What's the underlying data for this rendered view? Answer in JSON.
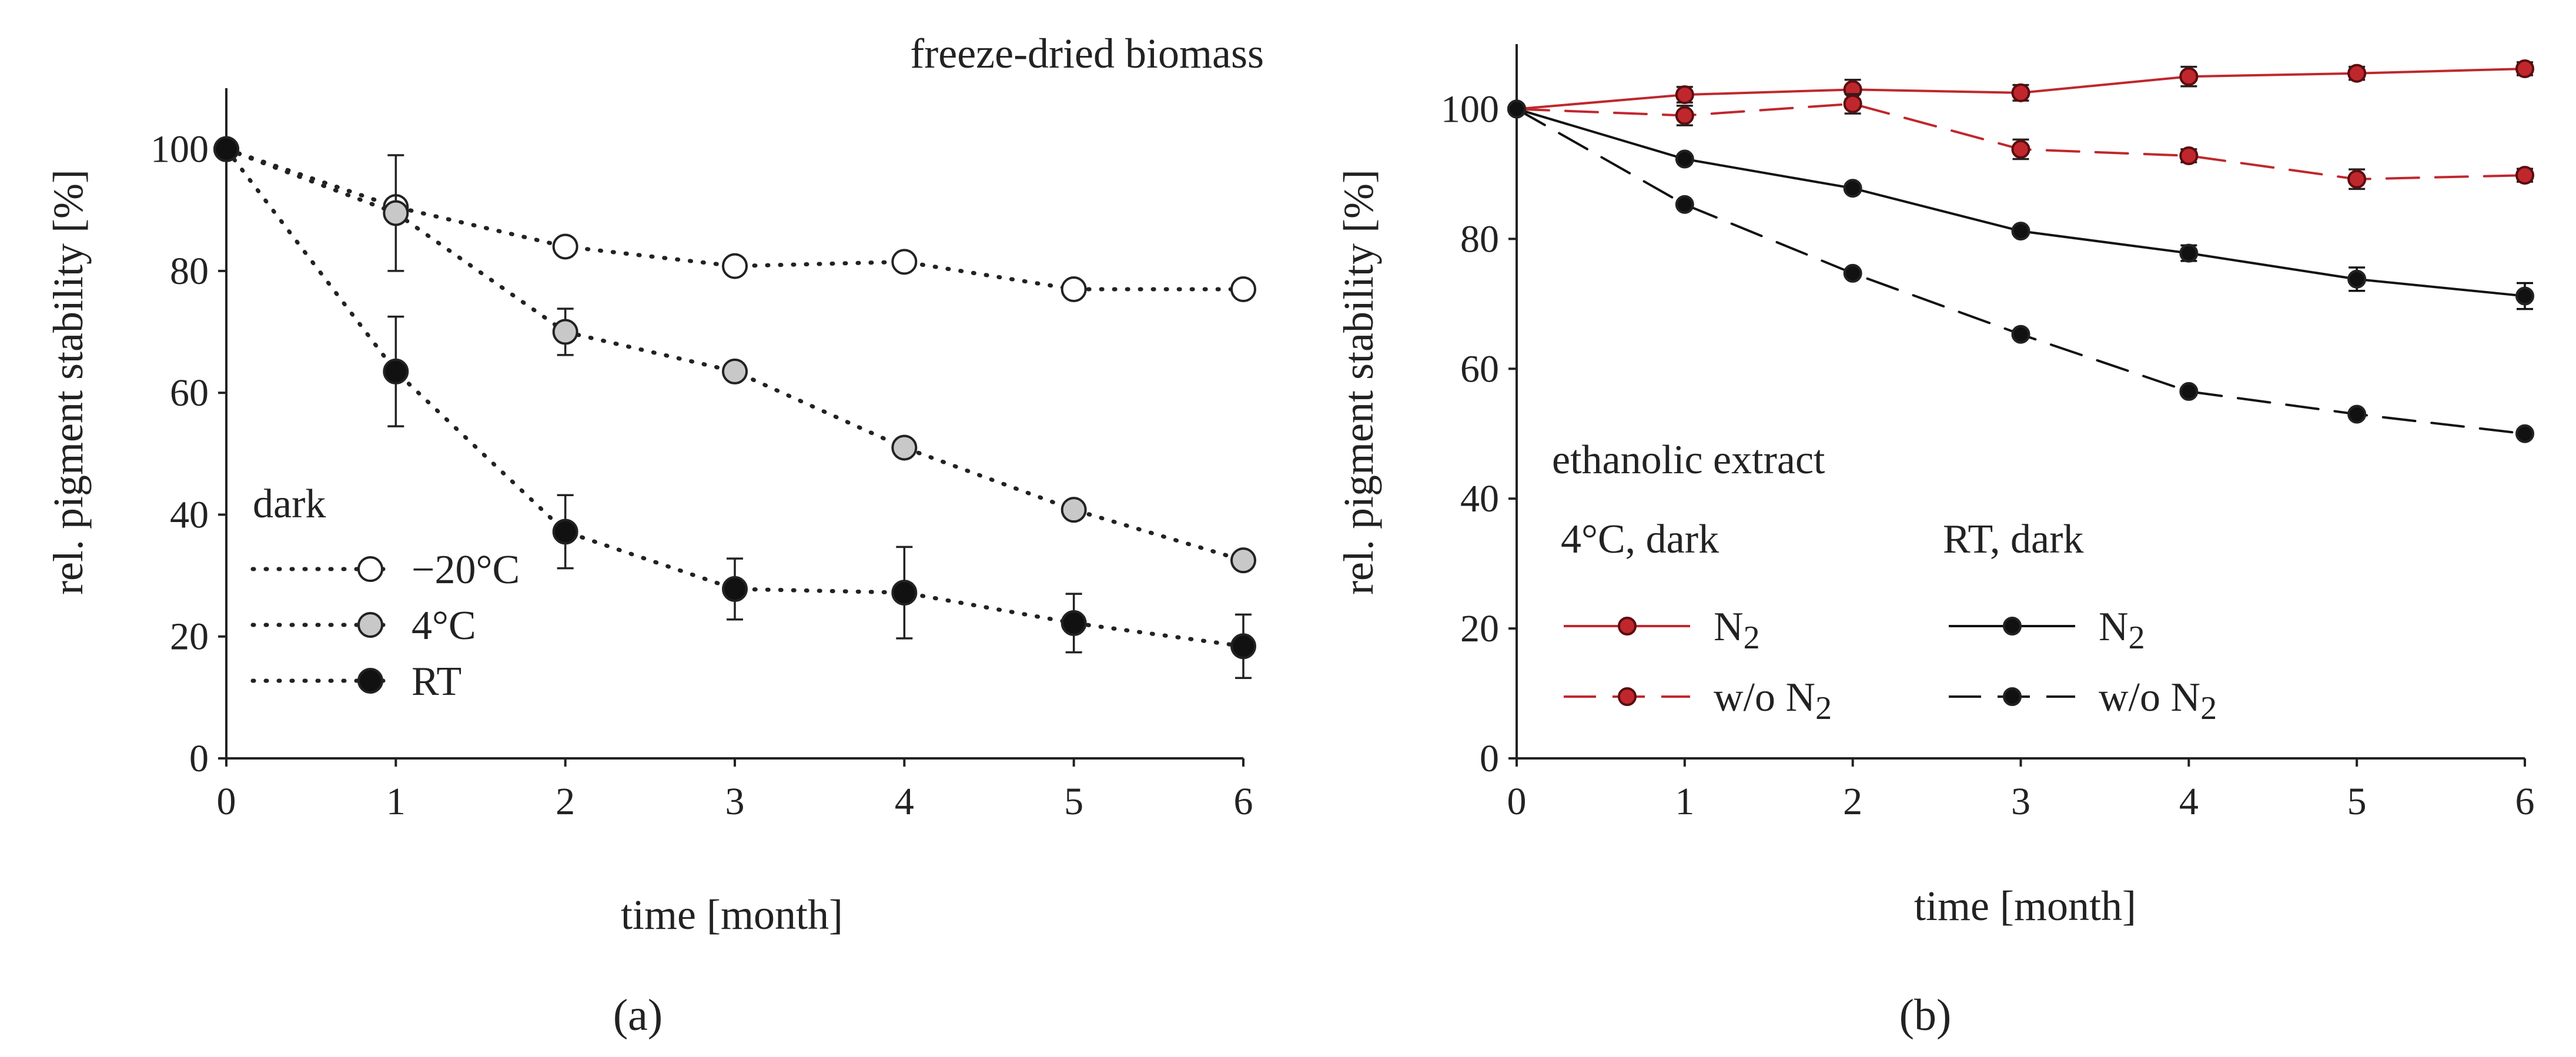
{
  "chart_data": [
    {
      "panel": "a",
      "panel_label": "(a)",
      "type": "line",
      "title": "freeze-dried biomass",
      "xlabel": "time [month]",
      "ylabel": "rel. pigment stability [%]",
      "xlim": [
        0,
        6
      ],
      "ylim": [
        0,
        110
      ],
      "xticks": [
        0,
        1,
        2,
        3,
        4,
        5,
        6
      ],
      "yticks": [
        0,
        20,
        40,
        60,
        80,
        100
      ],
      "legend_title": "dark",
      "legend_position": "bottom-left",
      "series": [
        {
          "name": "−20°C",
          "x": [
            0,
            1,
            2,
            3,
            4,
            5,
            6
          ],
          "values": [
            100,
            90.5,
            84,
            80.8,
            81.5,
            77,
            77
          ],
          "err": [
            0,
            0,
            0,
            0,
            0,
            0,
            0
          ],
          "marker": "open",
          "color": "#ffffff",
          "line": "dotted"
        },
        {
          "name": "4°C",
          "x": [
            0,
            1,
            2,
            3,
            4,
            5,
            6
          ],
          "values": [
            100,
            89.5,
            70,
            63.5,
            51,
            40.8,
            32.5
          ],
          "err": [
            0,
            9.5,
            3.8,
            0,
            0,
            0,
            0
          ],
          "marker": "gray",
          "color": "#c8c8c8",
          "line": "dotted"
        },
        {
          "name": "RT",
          "x": [
            0,
            1,
            2,
            3,
            4,
            5,
            6
          ],
          "values": [
            100,
            63.5,
            37.2,
            27.8,
            27.2,
            22.2,
            18.4
          ],
          "err": [
            0,
            9,
            6,
            5,
            7.5,
            4.8,
            5.2
          ],
          "marker": "black",
          "color": "#111111",
          "line": "dotted"
        }
      ]
    },
    {
      "panel": "b",
      "panel_label": "(b)",
      "type": "line",
      "title": "ethanolic extract",
      "xlabel": "time [month]",
      "ylabel": "rel. pigment stability [%]",
      "xlim": [
        0,
        6
      ],
      "ylim": [
        0,
        110
      ],
      "xticks": [
        0,
        1,
        2,
        3,
        4,
        5,
        6
      ],
      "yticks": [
        0,
        20,
        40,
        60,
        80,
        100
      ],
      "legend_groups": [
        "4°C, dark",
        "RT, dark"
      ],
      "legend_position": "bottom-left",
      "series": [
        {
          "name": "N2",
          "group": "4°C, dark",
          "x": [
            0,
            1,
            2,
            3,
            4,
            5,
            6
          ],
          "values": [
            100,
            102.2,
            103,
            102.5,
            105,
            105.5,
            106.2
          ],
          "err": [
            0,
            1.2,
            1.5,
            1.2,
            1.5,
            1,
            1
          ],
          "color": "#c0272d",
          "line": "solid"
        },
        {
          "name": "w/o N2",
          "group": "4°C, dark",
          "x": [
            0,
            1,
            2,
            3,
            4,
            5,
            6
          ],
          "values": [
            100,
            99,
            100.8,
            93.8,
            92.8,
            89.2,
            89.8
          ],
          "err": [
            0,
            1.5,
            1.5,
            1.5,
            1,
            1.5,
            1
          ],
          "color": "#c0272d",
          "line": "dashed"
        },
        {
          "name": "N2",
          "group": "RT, dark",
          "x": [
            0,
            1,
            2,
            3,
            4,
            5,
            6
          ],
          "values": [
            100,
            92.3,
            87.8,
            81.2,
            77.8,
            73.8,
            71.2
          ],
          "err": [
            0,
            0,
            0,
            0,
            1.2,
            1.8,
            2
          ],
          "color": "#111111",
          "line": "solid"
        },
        {
          "name": "w/o N2",
          "group": "RT, dark",
          "x": [
            0,
            1,
            2,
            3,
            4,
            5,
            6
          ],
          "values": [
            100,
            85.3,
            74.7,
            65.3,
            56.5,
            53,
            50
          ],
          "err": [
            0,
            0,
            0,
            0,
            0,
            0,
            0
          ],
          "color": "#111111",
          "line": "dashed"
        }
      ]
    }
  ]
}
